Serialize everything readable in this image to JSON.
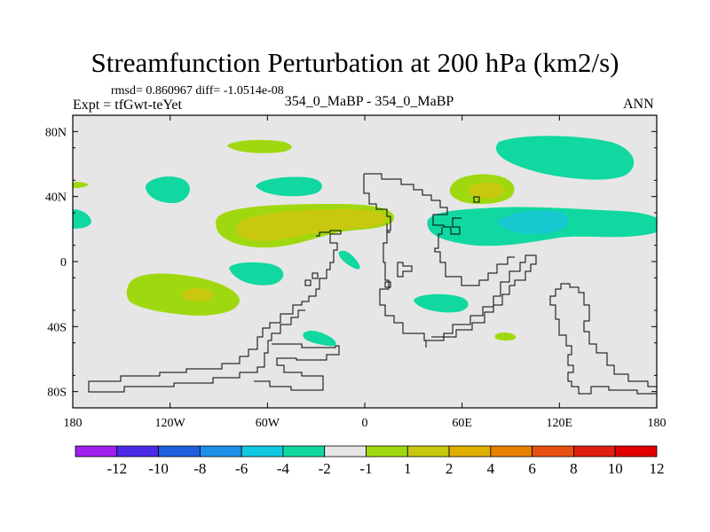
{
  "header": {
    "title": "Streamfunction Perturbation at 200 hPa (km2/s)",
    "stats": "rmsd= 0.860967 diff= -1.0514e-08",
    "experiment": "Expt = tfGwt-teYet",
    "center_label": "354_0_MaBP - 354_0_MaBP",
    "season": "ANN"
  },
  "chart_data": {
    "type": "heatmap",
    "title": "Streamfunction Perturbation at 200 hPa (km2/s)",
    "x_ticks": [
      "180",
      "120W",
      "60W",
      "0",
      "60E",
      "120E",
      "180"
    ],
    "y_ticks": [
      "80N",
      "40N",
      "0",
      "40S",
      "80S"
    ],
    "xlim": [
      -180,
      180
    ],
    "ylim": [
      -90,
      90
    ],
    "colorbar": {
      "labels": [
        "-12",
        "-10",
        "-8",
        "-6",
        "-4",
        "-2",
        "-1",
        "1",
        "2",
        "4",
        "6",
        "8",
        "10",
        "12"
      ],
      "colors": [
        "#a020f0",
        "#4b2be8",
        "#2060e0",
        "#1e90e8",
        "#10c8e0",
        "#10d8a0",
        "#e6e6e6",
        "#a0d810",
        "#c8c810",
        "#e0b000",
        "#e88000",
        "#e85010",
        "#e02010",
        "#e00000"
      ]
    },
    "field_background": "#e6e6e6",
    "levels": {
      "neg_weak": "#10d8a0",
      "neg_mid": "#18c8d0",
      "pos_weak": "#a0d810",
      "pos_mid": "#c8c810"
    }
  }
}
